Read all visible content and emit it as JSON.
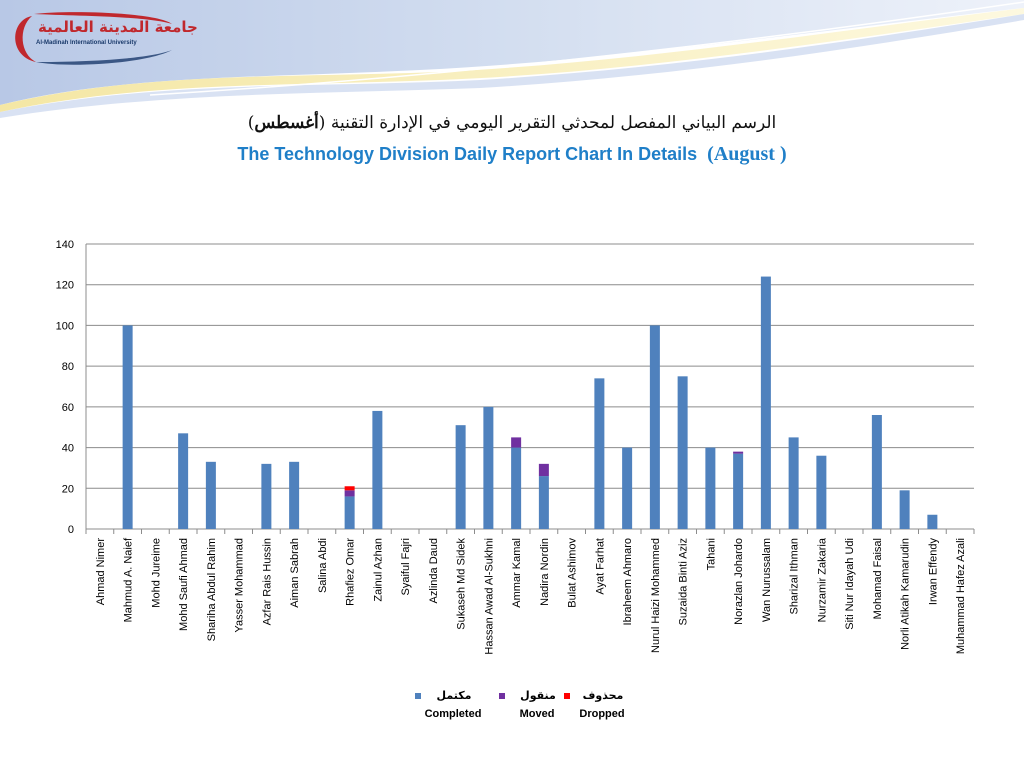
{
  "logo": {
    "name_ar": "جامعة المدينة العالمية",
    "name_en": "Al-Madinah International University"
  },
  "title": {
    "ar_main": "الرسم البياني المفصل لمحدثي التقرير اليومي في الإدارة التقنية",
    "ar_month": "أغسطس",
    "en_main": "The Technology Division Daily Report Chart In Details",
    "en_month": "August"
  },
  "colors": {
    "completed": "#4f81bd",
    "moved": "#7030a0",
    "dropped": "#ff0000",
    "header_blue": "#9fb4d8",
    "title_blue": "#1f7fc8"
  },
  "chart_data": {
    "type": "bar",
    "stacked": true,
    "ylim": [
      0,
      140
    ],
    "yticks": [
      0,
      20,
      40,
      60,
      80,
      100,
      120,
      140
    ],
    "grid": true,
    "legend_position": "bottom",
    "categories": [
      "Ahmad Nimer",
      "Mahmud A. Naief",
      "Mohd Jureime",
      "Mohd Saufi Ahmad",
      "Shariha Abdul Rahim",
      "Yasser Mohammad",
      "Azfar Rais Hussin",
      "Aiman Sabrah",
      "Salina Abdi",
      "Rhafiez Omar",
      "Zainul Azhan",
      "Syaiful Fajri",
      "Azlinda Daud",
      "Sukaseh Md Sidek",
      "Hassan Awad Al-Sukhni",
      "Ammar Kamal",
      "Nadira Nordin",
      "Bulat Ashimov",
      "Ayat Farhat",
      "Ibraheem Ahmaro",
      "Nurul Haizi Mohammed",
      "Suzaida Binti Aziz",
      "Tahani",
      "Norazlan Johardo",
      "Wan Nurussalam",
      "Sharizal Ithman",
      "Nurzamir Zakaria",
      "Siti Nur Idayah Udi",
      "Mohamad Faisal",
      "Norli Atikah Kamarudin",
      "Irwan Effendy",
      "Muhammad Hafez Azali"
    ],
    "series": [
      {
        "name": "Completed",
        "name_ar": "مكتمل",
        "color": "#4f81bd",
        "values": [
          0,
          100,
          0,
          47,
          33,
          0,
          32,
          33,
          0,
          16,
          58,
          0,
          0,
          51,
          60,
          40,
          26,
          0,
          74,
          40,
          100,
          75,
          40,
          37,
          124,
          45,
          36,
          0,
          56,
          19,
          7,
          0
        ]
      },
      {
        "name": "Moved",
        "name_ar": "منقول",
        "color": "#7030a0",
        "values": [
          0,
          0,
          0,
          0,
          0,
          0,
          0,
          0,
          0,
          3,
          0,
          0,
          0,
          0,
          0,
          5,
          6,
          0,
          0,
          0,
          0,
          0,
          0,
          1,
          0,
          0,
          0,
          0,
          0,
          0,
          0,
          0
        ]
      },
      {
        "name": "Dropped",
        "name_ar": "محذوف",
        "color": "#ff0000",
        "values": [
          0,
          0,
          0,
          0,
          0,
          0,
          0,
          0,
          0,
          2,
          0,
          0,
          0,
          0,
          0,
          0,
          0,
          0,
          0,
          0,
          0,
          0,
          0,
          0,
          0,
          0,
          0,
          0,
          0,
          0,
          0,
          0
        ]
      }
    ]
  }
}
